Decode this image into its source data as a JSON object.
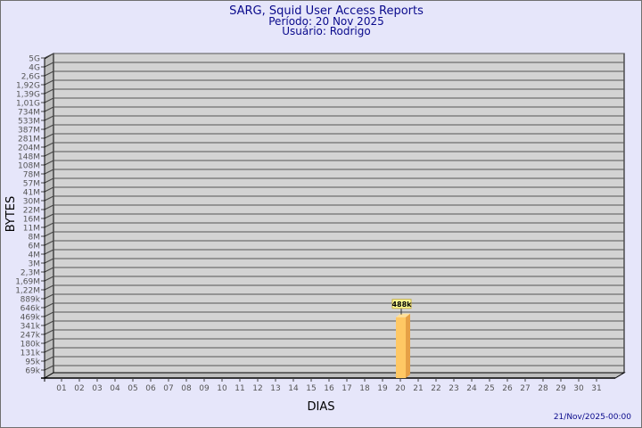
{
  "chart_data": {
    "type": "bar",
    "title": "SARG, Squid User Access Reports",
    "subtitle": [
      "Período: 20 Nov 2025",
      "Usuário: Rodrigo"
    ],
    "xlabel": "DIAS",
    "ylabel": "BYTES",
    "y_scale": "log",
    "grid": true,
    "y_tick_labels": [
      "5G",
      "4G",
      "2,6G",
      "1,92G",
      "1,39G",
      "1,01G",
      "734M",
      "533M",
      "387M",
      "281M",
      "204M",
      "148M",
      "108M",
      "78M",
      "57M",
      "41M",
      "30M",
      "22M",
      "16M",
      "11M",
      "8M",
      "6M",
      "4M",
      "3M",
      "2,3M",
      "1,69M",
      "1,22M",
      "889k",
      "646k",
      "469k",
      "341k",
      "247k",
      "180k",
      "131k",
      "95k",
      "69k"
    ],
    "categories": [
      "01",
      "02",
      "03",
      "04",
      "05",
      "06",
      "07",
      "08",
      "09",
      "10",
      "11",
      "12",
      "13",
      "14",
      "15",
      "16",
      "17",
      "18",
      "19",
      "20",
      "21",
      "22",
      "23",
      "24",
      "25",
      "26",
      "27",
      "28",
      "29",
      "30",
      "31"
    ],
    "series": [
      {
        "values": [
          {
            "day": "20",
            "bytes": 488000,
            "label": "488k"
          }
        ]
      }
    ],
    "footer": "21/Nov/2025-00:00",
    "colors": {
      "background": "#e6e6fa",
      "wall": "#d3d3d3",
      "side_wall": "#bebebe",
      "bar_front": "#ffc864",
      "bar_side": "#e6a046",
      "bar_top": "#ffe09a",
      "label_box": "#ffff99",
      "title": "#0a0a8c"
    }
  }
}
